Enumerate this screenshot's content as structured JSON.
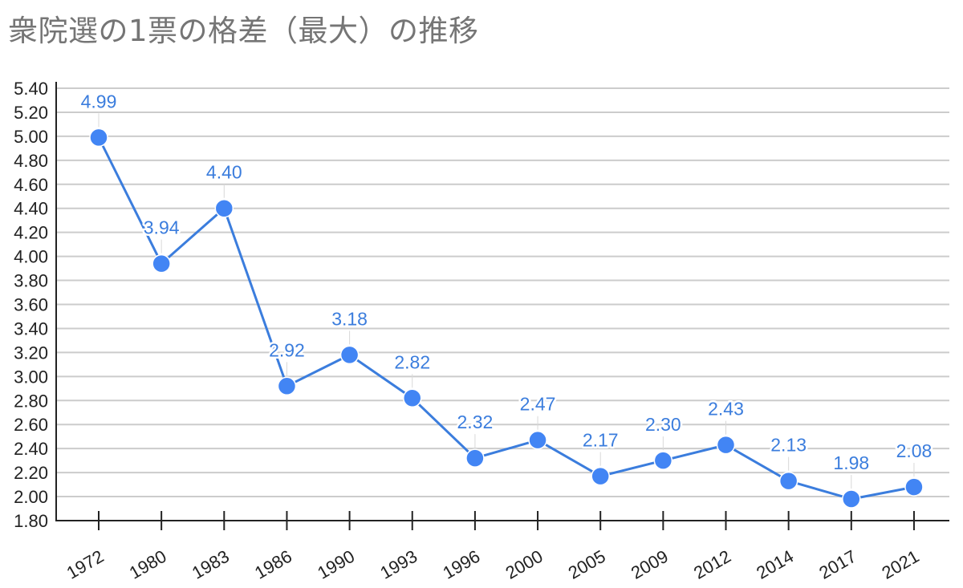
{
  "chart_data": {
    "type": "line",
    "title": "衆院選の1票の格差（最大）の推移",
    "xlabel": "",
    "ylabel": "",
    "categories": [
      "1972",
      "1980",
      "1983",
      "1986",
      "1990",
      "1993",
      "1996",
      "2000",
      "2005",
      "2009",
      "2012",
      "2014",
      "2017",
      "2021"
    ],
    "series": [
      {
        "values": [
          4.99,
          3.94,
          4.4,
          2.92,
          3.18,
          2.82,
          2.32,
          2.47,
          2.17,
          2.3,
          2.43,
          2.13,
          1.98,
          2.08
        ],
        "labels": [
          "4.99",
          "3.94",
          "4.40",
          "2.92",
          "3.18",
          "2.82",
          "2.32",
          "2.47",
          "2.17",
          "2.30",
          "2.43",
          "2.13",
          "1.98",
          "2.08"
        ]
      }
    ],
    "ylim": [
      1.8,
      5.4
    ],
    "yticks": [
      "1.80",
      "2.00",
      "2.20",
      "2.40",
      "2.60",
      "2.80",
      "3.00",
      "3.20",
      "3.40",
      "3.60",
      "3.80",
      "4.00",
      "4.20",
      "4.40",
      "4.60",
      "4.80",
      "5.00",
      "5.20",
      "5.40"
    ],
    "grid": true,
    "legend": "none",
    "colors": {
      "line": "#3b7ddd",
      "marker": "#4285f4",
      "label": "#3b7ddd",
      "title": "#757575"
    }
  }
}
